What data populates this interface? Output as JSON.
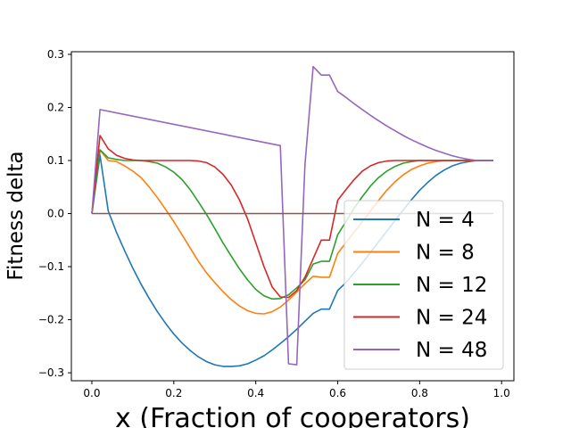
{
  "chart_data": {
    "type": "line",
    "xlabel": "x (Fraction of cooperators)",
    "ylabel": "Fitness delta",
    "xlim": [
      -0.05,
      1.03
    ],
    "ylim": [
      -0.315,
      0.305
    ],
    "xticks": [
      "0.0",
      "0.2",
      "0.4",
      "0.6",
      "0.8",
      "1.0"
    ],
    "xtick_values": [
      0.0,
      0.2,
      0.4,
      0.6,
      0.8,
      1.0
    ],
    "yticks": [
      "−0.3",
      "−0.2",
      "−0.1",
      "0.0",
      "0.1",
      "0.2",
      "0.3"
    ],
    "ytick_values": [
      -0.3,
      -0.2,
      -0.1,
      0.0,
      0.1,
      0.2,
      0.3
    ],
    "grid": false,
    "legend_position": "lower-right",
    "series": [
      {
        "name": "N = 4",
        "color": "#1f77b4",
        "points": [
          [
            0,
            0
          ],
          [
            0.02,
            0.11
          ],
          [
            0.04,
            0.005
          ],
          [
            0.06,
            -0.035
          ],
          [
            0.08,
            -0.07
          ],
          [
            0.1,
            -0.103
          ],
          [
            0.12,
            -0.133
          ],
          [
            0.14,
            -0.16
          ],
          [
            0.16,
            -0.185
          ],
          [
            0.18,
            -0.207
          ],
          [
            0.2,
            -0.227
          ],
          [
            0.22,
            -0.244
          ],
          [
            0.24,
            -0.258
          ],
          [
            0.26,
            -0.27
          ],
          [
            0.28,
            -0.279
          ],
          [
            0.3,
            -0.285
          ],
          [
            0.32,
            -0.288
          ],
          [
            0.34,
            -0.288
          ],
          [
            0.36,
            -0.287
          ],
          [
            0.38,
            -0.283
          ],
          [
            0.4,
            -0.276
          ],
          [
            0.42,
            -0.268
          ],
          [
            0.44,
            -0.257
          ],
          [
            0.46,
            -0.245
          ],
          [
            0.48,
            -0.232
          ],
          [
            0.5,
            -0.218
          ],
          [
            0.52,
            -0.203
          ],
          [
            0.54,
            -0.188
          ],
          [
            0.56,
            -0.18
          ],
          [
            0.58,
            -0.18
          ],
          [
            0.6,
            -0.145
          ],
          [
            0.62,
            -0.13
          ],
          [
            0.64,
            -0.112
          ],
          [
            0.66,
            -0.093
          ],
          [
            0.68,
            -0.073
          ],
          [
            0.7,
            -0.053
          ],
          [
            0.72,
            -0.033
          ],
          [
            0.74,
            -0.013
          ],
          [
            0.76,
            0.007
          ],
          [
            0.78,
            0.026
          ],
          [
            0.8,
            0.044
          ],
          [
            0.82,
            0.059
          ],
          [
            0.84,
            0.072
          ],
          [
            0.86,
            0.082
          ],
          [
            0.88,
            0.09
          ],
          [
            0.9,
            0.095
          ],
          [
            0.92,
            0.098
          ],
          [
            0.94,
            0.1
          ],
          [
            0.96,
            0.1
          ],
          [
            0.98,
            0.1
          ]
        ]
      },
      {
        "name": "N = 8",
        "color": "#ff7f0e",
        "points": [
          [
            0,
            0
          ],
          [
            0.02,
            0.12
          ],
          [
            0.04,
            0.1
          ],
          [
            0.06,
            0.098
          ],
          [
            0.08,
            0.09
          ],
          [
            0.1,
            0.08
          ],
          [
            0.12,
            0.068
          ],
          [
            0.14,
            0.05
          ],
          [
            0.16,
            0.03
          ],
          [
            0.18,
            0.008
          ],
          [
            0.2,
            -0.015
          ],
          [
            0.22,
            -0.04
          ],
          [
            0.24,
            -0.065
          ],
          [
            0.26,
            -0.09
          ],
          [
            0.28,
            -0.112
          ],
          [
            0.3,
            -0.13
          ],
          [
            0.32,
            -0.147
          ],
          [
            0.34,
            -0.162
          ],
          [
            0.36,
            -0.174
          ],
          [
            0.38,
            -0.183
          ],
          [
            0.4,
            -0.188
          ],
          [
            0.42,
            -0.189
          ],
          [
            0.44,
            -0.185
          ],
          [
            0.46,
            -0.176
          ],
          [
            0.48,
            -0.163
          ],
          [
            0.5,
            -0.148
          ],
          [
            0.52,
            -0.132
          ],
          [
            0.54,
            -0.118
          ],
          [
            0.56,
            -0.12
          ],
          [
            0.58,
            -0.12
          ],
          [
            0.6,
            -0.075
          ],
          [
            0.62,
            -0.055
          ],
          [
            0.64,
            -0.035
          ],
          [
            0.66,
            -0.015
          ],
          [
            0.68,
            0.005
          ],
          [
            0.7,
            0.025
          ],
          [
            0.72,
            0.044
          ],
          [
            0.74,
            0.06
          ],
          [
            0.76,
            0.073
          ],
          [
            0.78,
            0.083
          ],
          [
            0.8,
            0.09
          ],
          [
            0.82,
            0.095
          ],
          [
            0.84,
            0.098
          ],
          [
            0.86,
            0.1
          ],
          [
            0.88,
            0.1
          ],
          [
            0.9,
            0.1
          ],
          [
            0.92,
            0.1
          ],
          [
            0.94,
            0.1
          ],
          [
            0.96,
            0.1
          ],
          [
            0.98,
            0.1
          ]
        ]
      },
      {
        "name": "N = 12",
        "color": "#2ca02c",
        "points": [
          [
            0,
            0
          ],
          [
            0.02,
            0.12
          ],
          [
            0.04,
            0.105
          ],
          [
            0.06,
            0.102
          ],
          [
            0.08,
            0.1
          ],
          [
            0.1,
            0.1
          ],
          [
            0.12,
            0.1
          ],
          [
            0.14,
            0.098
          ],
          [
            0.16,
            0.095
          ],
          [
            0.18,
            0.088
          ],
          [
            0.2,
            0.078
          ],
          [
            0.22,
            0.064
          ],
          [
            0.24,
            0.045
          ],
          [
            0.26,
            0.022
          ],
          [
            0.28,
            -0.002
          ],
          [
            0.3,
            -0.028
          ],
          [
            0.32,
            -0.055
          ],
          [
            0.34,
            -0.08
          ],
          [
            0.36,
            -0.104
          ],
          [
            0.38,
            -0.125
          ],
          [
            0.4,
            -0.143
          ],
          [
            0.42,
            -0.155
          ],
          [
            0.44,
            -0.161
          ],
          [
            0.46,
            -0.16
          ],
          [
            0.48,
            -0.153
          ],
          [
            0.5,
            -0.14
          ],
          [
            0.52,
            -0.125
          ],
          [
            0.54,
            -0.095
          ],
          [
            0.56,
            -0.09
          ],
          [
            0.58,
            -0.09
          ],
          [
            0.6,
            -0.04
          ],
          [
            0.62,
            -0.015
          ],
          [
            0.64,
            0.01
          ],
          [
            0.66,
            0.032
          ],
          [
            0.68,
            0.052
          ],
          [
            0.7,
            0.068
          ],
          [
            0.72,
            0.08
          ],
          [
            0.74,
            0.089
          ],
          [
            0.76,
            0.095
          ],
          [
            0.78,
            0.098
          ],
          [
            0.8,
            0.1
          ],
          [
            0.82,
            0.1
          ],
          [
            0.84,
            0.1
          ],
          [
            0.86,
            0.1
          ],
          [
            0.88,
            0.1
          ],
          [
            0.9,
            0.1
          ],
          [
            0.92,
            0.1
          ],
          [
            0.94,
            0.1
          ],
          [
            0.96,
            0.1
          ],
          [
            0.98,
            0.1
          ]
        ]
      },
      {
        "name": "N = 24",
        "color": "#d62728",
        "points": [
          [
            0,
            0
          ],
          [
            0.02,
            0.147
          ],
          [
            0.04,
            0.122
          ],
          [
            0.06,
            0.11
          ],
          [
            0.08,
            0.104
          ],
          [
            0.1,
            0.101
          ],
          [
            0.12,
            0.1
          ],
          [
            0.14,
            0.1
          ],
          [
            0.16,
            0.1
          ],
          [
            0.18,
            0.1
          ],
          [
            0.2,
            0.1
          ],
          [
            0.22,
            0.1
          ],
          [
            0.24,
            0.1
          ],
          [
            0.26,
            0.099
          ],
          [
            0.28,
            0.096
          ],
          [
            0.3,
            0.088
          ],
          [
            0.32,
            0.074
          ],
          [
            0.34,
            0.054
          ],
          [
            0.36,
            0.026
          ],
          [
            0.38,
            -0.01
          ],
          [
            0.4,
            -0.055
          ],
          [
            0.42,
            -0.1
          ],
          [
            0.44,
            -0.138
          ],
          [
            0.46,
            -0.157
          ],
          [
            0.48,
            -0.158
          ],
          [
            0.5,
            -0.145
          ],
          [
            0.52,
            -0.12
          ],
          [
            0.54,
            -0.085
          ],
          [
            0.56,
            -0.05
          ],
          [
            0.58,
            -0.05
          ],
          [
            0.6,
            0.025
          ],
          [
            0.62,
            0.045
          ],
          [
            0.64,
            0.064
          ],
          [
            0.66,
            0.08
          ],
          [
            0.68,
            0.09
          ],
          [
            0.7,
            0.096
          ],
          [
            0.72,
            0.099
          ],
          [
            0.74,
            0.1
          ],
          [
            0.76,
            0.1
          ],
          [
            0.78,
            0.1
          ],
          [
            0.8,
            0.1
          ],
          [
            0.82,
            0.1
          ],
          [
            0.84,
            0.1
          ],
          [
            0.86,
            0.1
          ],
          [
            0.88,
            0.1
          ],
          [
            0.9,
            0.1
          ],
          [
            0.92,
            0.1
          ],
          [
            0.94,
            0.1
          ],
          [
            0.96,
            0.1
          ],
          [
            0.98,
            0.1
          ]
        ]
      },
      {
        "name": "N = 48",
        "color": "#9467bd",
        "points": [
          [
            0,
            0
          ],
          [
            0.02,
            0.196
          ],
          [
            0.46,
            0.128
          ],
          [
            0.48,
            -0.283
          ],
          [
            0.5,
            -0.285
          ],
          [
            0.52,
            0.092
          ],
          [
            0.54,
            0.277
          ],
          [
            0.56,
            0.261
          ],
          [
            0.58,
            0.261
          ],
          [
            0.6,
            0.23
          ],
          [
            0.62,
            0.219
          ],
          [
            0.64,
            0.207
          ],
          [
            0.66,
            0.196
          ],
          [
            0.68,
            0.185
          ],
          [
            0.7,
            0.175
          ],
          [
            0.72,
            0.165
          ],
          [
            0.74,
            0.156
          ],
          [
            0.76,
            0.147
          ],
          [
            0.78,
            0.139
          ],
          [
            0.8,
            0.132
          ],
          [
            0.82,
            0.125
          ],
          [
            0.84,
            0.119
          ],
          [
            0.86,
            0.114
          ],
          [
            0.88,
            0.109
          ],
          [
            0.9,
            0.105
          ],
          [
            0.92,
            0.102
          ],
          [
            0.94,
            0.1
          ],
          [
            0.96,
            0.1
          ],
          [
            0.98,
            0.1
          ]
        ]
      },
      {
        "color": "#8c564b",
        "points": [
          [
            0,
            0
          ],
          [
            0.98,
            0
          ]
        ]
      }
    ]
  }
}
